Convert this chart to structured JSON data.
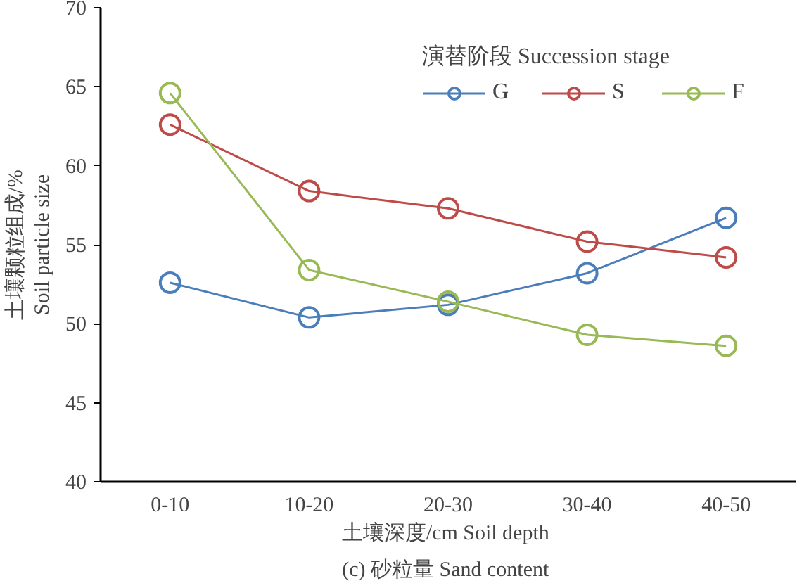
{
  "chart_data": {
    "type": "line",
    "xlabel": "土壤深度/cm  Soil depth",
    "ylabel": "土壤颗粒组成/%\nSoil particle size",
    "legend_title": "演替阶段 Succession stage",
    "annotations": [
      "(c)  砂粒量 Sand content"
    ],
    "categories": [
      "0-10",
      "10-20",
      "20-30",
      "30-40",
      "40-50"
    ],
    "series": [
      {
        "name": "G",
        "color": "#4a7ebb",
        "values": [
          52.6,
          50.4,
          51.2,
          53.2,
          56.7
        ]
      },
      {
        "name": "S",
        "color": "#be4b48",
        "values": [
          62.6,
          58.4,
          57.3,
          55.2,
          54.2
        ]
      },
      {
        "name": "F",
        "color": "#98b954",
        "values": [
          64.6,
          53.4,
          51.4,
          49.3,
          48.6
        ]
      }
    ],
    "ylim": [
      40,
      70
    ],
    "yticks": [
      40,
      45,
      50,
      55,
      60,
      65,
      70
    ],
    "grid": false,
    "legend": "top right",
    "marker": "circle",
    "line_style": "solid"
  }
}
